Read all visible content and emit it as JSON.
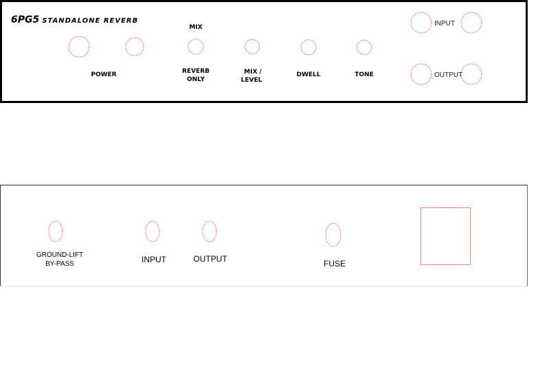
{
  "front_panel": {
    "title_model": "6PG5",
    "title_rest": "STANDALONE REVERB",
    "labels": {
      "mix": "MIX",
      "power": "POWER",
      "reverb_only_1": "REVERB",
      "reverb_only_2": "ONLY",
      "mix_level_1": "MIX /",
      "mix_level_2": "LEVEL",
      "dwell": "DWELL",
      "tone": "TONE",
      "input": "INPUT",
      "output": "OUTPUT"
    }
  },
  "rear_panel": {
    "labels": {
      "ground_lift_1": "GROUND-LIFT",
      "ground_lift_2": "BY-PASS",
      "input": "INPUT",
      "output": "OUTPUT",
      "fuse": "FUSE"
    }
  },
  "colors": {
    "hole_outline": "#f08080",
    "panel_border": "#000000"
  }
}
